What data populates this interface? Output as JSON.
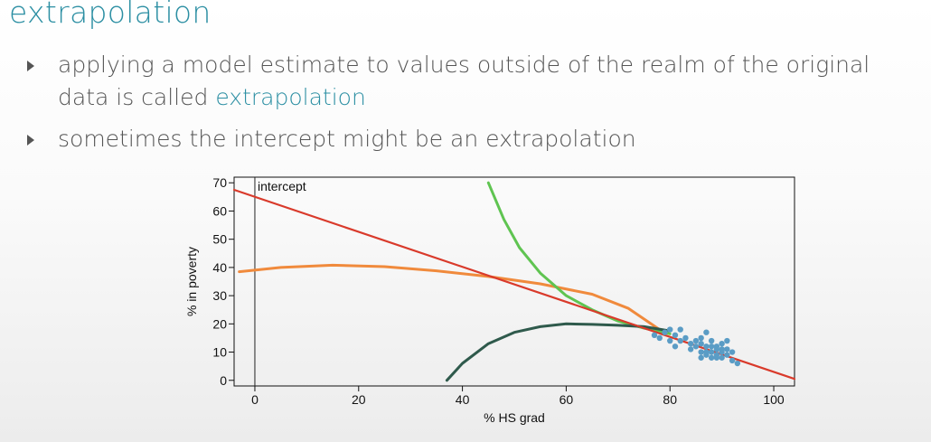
{
  "slide": {
    "title": "extrapolation",
    "bullet1_part1": "applying a model estimate to values outside of the realm of the original data is called ",
    "bullet1_highlight": "extrapolation",
    "bullet2": "sometimes the intercept might be an extrapolation"
  },
  "colors": {
    "accent": "#2c8fa3",
    "regression_line": "#d93a2b",
    "orange_curve": "#f08a3c",
    "green_curve": "#5fc451",
    "dark_curve": "#2f5a4c",
    "points": "#5a9cc5"
  },
  "chart_data": {
    "type": "scatter",
    "xlabel": "% HS grad",
    "ylabel": "% in poverty",
    "xlim": [
      -4,
      104
    ],
    "ylim": [
      -2,
      72
    ],
    "xticks": [
      0,
      20,
      40,
      60,
      80,
      100
    ],
    "yticks": [
      0,
      10,
      20,
      30,
      40,
      50,
      60,
      70
    ],
    "annotations": [
      {
        "text": "intercept",
        "x": 0
      }
    ],
    "vertical_line_x": 0,
    "series": [
      {
        "type": "scatter",
        "points": [
          [
            77,
            16
          ],
          [
            78,
            15
          ],
          [
            79,
            17
          ],
          [
            80,
            14
          ],
          [
            80,
            18
          ],
          [
            81,
            16
          ],
          [
            81,
            12
          ],
          [
            82,
            14
          ],
          [
            82,
            18
          ],
          [
            83,
            15
          ],
          [
            84,
            13
          ],
          [
            84,
            11
          ],
          [
            85,
            14
          ],
          [
            85,
            12
          ],
          [
            86,
            10
          ],
          [
            86,
            13
          ],
          [
            86,
            15
          ],
          [
            87,
            9
          ],
          [
            87,
            17
          ],
          [
            87,
            12
          ],
          [
            88,
            10
          ],
          [
            88,
            8
          ],
          [
            88,
            14
          ],
          [
            89,
            11
          ],
          [
            89,
            9
          ],
          [
            89,
            12
          ],
          [
            90,
            10
          ],
          [
            90,
            8
          ],
          [
            90,
            13
          ],
          [
            91,
            11
          ],
          [
            91,
            9
          ],
          [
            91,
            14
          ],
          [
            92,
            10
          ],
          [
            92,
            7
          ],
          [
            93,
            6
          ],
          [
            87,
            10
          ],
          [
            88,
            12
          ],
          [
            89,
            8
          ],
          [
            90,
            11
          ],
          [
            86,
            8
          ]
        ]
      },
      {
        "type": "line",
        "points": [
          [
            -4,
            67.5
          ],
          [
            104,
            0.5
          ]
        ]
      },
      {
        "type": "line",
        "points": [
          [
            -3,
            38.5
          ],
          [
            5,
            40
          ],
          [
            15,
            40.8
          ],
          [
            25,
            40.3
          ],
          [
            35,
            38.8
          ],
          [
            45,
            36.8
          ],
          [
            55,
            34.2
          ],
          [
            65,
            30.5
          ],
          [
            72,
            25.5
          ],
          [
            78,
            18
          ]
        ]
      },
      {
        "type": "line",
        "points": [
          [
            45,
            70
          ],
          [
            48,
            57
          ],
          [
            51,
            47
          ],
          [
            55,
            38
          ],
          [
            60,
            30
          ],
          [
            65,
            25
          ],
          [
            70,
            21
          ],
          [
            75,
            18.5
          ],
          [
            80,
            16.5
          ]
        ]
      },
      {
        "type": "line",
        "points": [
          [
            37,
            0
          ],
          [
            40,
            6
          ],
          [
            45,
            13
          ],
          [
            50,
            17
          ],
          [
            55,
            19
          ],
          [
            60,
            20
          ],
          [
            65,
            19.8
          ],
          [
            70,
            19.5
          ],
          [
            75,
            19
          ],
          [
            80,
            17.5
          ]
        ]
      }
    ]
  }
}
